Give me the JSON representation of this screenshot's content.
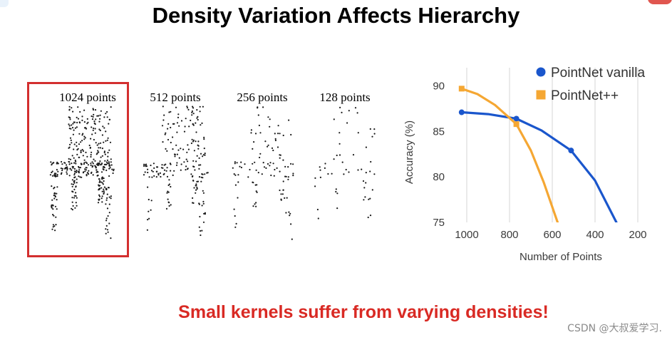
{
  "slide": {
    "title": "Density Variation Affects Hierarchy",
    "footer": "Small kernels suffer from varying densities!",
    "watermark": "CSDN @大叔爱学习.",
    "colors": {
      "highlight": "#d32f2f",
      "footer": "#d92a24",
      "vanilla": "#1a56cc",
      "plus": "#f5a733"
    }
  },
  "chairs": [
    {
      "label": "1024 points",
      "count": 1024,
      "highlighted": true
    },
    {
      "label": "512 points",
      "count": 512,
      "highlighted": false
    },
    {
      "label": "256 points",
      "count": 256,
      "highlighted": false
    },
    {
      "label": "128 points",
      "count": 128,
      "highlighted": false
    }
  ],
  "chart_data": {
    "type": "line",
    "title": "",
    "xlabel": "Number of Points",
    "ylabel": "Accuracy (%)",
    "xlim": [
      1050,
      150
    ],
    "ylim": [
      75,
      92
    ],
    "x_ticks": [
      1000,
      800,
      600,
      400,
      200
    ],
    "y_ticks": [
      75,
      80,
      85,
      90
    ],
    "legend_position": "top-right",
    "series": [
      {
        "name": "PointNet vanilla",
        "color": "#1a56cc",
        "marker": "circle",
        "markers_x": [
          1024,
          768,
          512
        ],
        "markers_y": [
          87.1,
          86.4,
          82.9
        ],
        "curve_x": [
          1024,
          900,
          768,
          650,
          512,
          400,
          300
        ],
        "curve_y": [
          87.1,
          86.9,
          86.4,
          85.1,
          82.9,
          79.6,
          75
        ]
      },
      {
        "name": "PointNet++",
        "color": "#f5a733",
        "marker": "square",
        "markers_x": [
          1024,
          768
        ],
        "markers_y": [
          89.7,
          85.8
        ],
        "curve_x": [
          1024,
          950,
          868,
          768,
          700,
          640,
          575
        ],
        "curve_y": [
          89.7,
          89.1,
          87.9,
          85.8,
          82.9,
          79.4,
          75
        ]
      }
    ]
  }
}
